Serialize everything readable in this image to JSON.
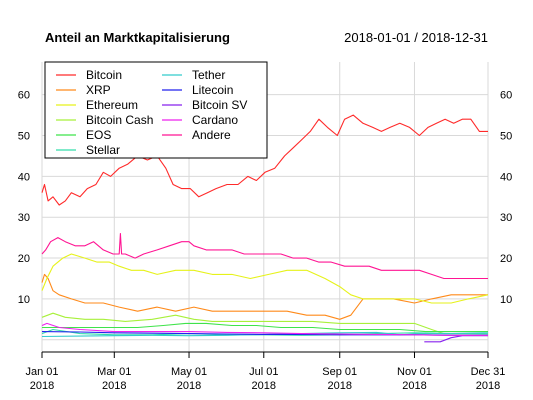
{
  "chart_data": {
    "type": "line",
    "title": "Anteil an Marktkapitalisierung",
    "subtitle": "2018-01-01 / 2018-12-31",
    "xlabel": "",
    "ylabel": "",
    "x_ticks": [
      "2018-01-01",
      "2018-03-01",
      "2018-05-01",
      "2018-07-01",
      "2018-09-01",
      "2018-11-01",
      "2018-12-31"
    ],
    "x_tick_labels": [
      {
        "month": "Jan 01",
        "year": "2018"
      },
      {
        "month": "Mar 01",
        "year": "2018"
      },
      {
        "month": "May 01",
        "year": "2018"
      },
      {
        "month": "Jul 01",
        "year": "2018"
      },
      {
        "month": "Sep 01",
        "year": "2018"
      },
      {
        "month": "Nov 01",
        "year": "2018"
      },
      {
        "month": "Dec 31",
        "year": "2018"
      }
    ],
    "y_ticks": [
      10,
      20,
      30,
      40,
      50,
      60
    ],
    "y_grid": [
      0,
      10,
      20,
      30,
      40,
      50,
      60
    ],
    "xlim": [
      "2018-01-01",
      "2018-12-31"
    ],
    "ylim": [
      -3,
      68
    ],
    "grid": true,
    "legend_position": "top-left",
    "series": [
      {
        "name": "Bitcoin",
        "color": "#ff2a2a",
        "x": [
          "2018-01-01",
          "2018-01-03",
          "2018-01-06",
          "2018-01-10",
          "2018-01-15",
          "2018-01-20",
          "2018-01-25",
          "2018-02-01",
          "2018-02-07",
          "2018-02-14",
          "2018-02-20",
          "2018-02-26",
          "2018-03-05",
          "2018-03-12",
          "2018-03-20",
          "2018-03-28",
          "2018-04-05",
          "2018-04-12",
          "2018-04-18",
          "2018-04-25",
          "2018-05-02",
          "2018-05-09",
          "2018-05-16",
          "2018-05-23",
          "2018-06-01",
          "2018-06-10",
          "2018-06-18",
          "2018-06-25",
          "2018-07-02",
          "2018-07-10",
          "2018-07-18",
          "2018-07-25",
          "2018-08-01",
          "2018-08-08",
          "2018-08-15",
          "2018-08-22",
          "2018-08-30",
          "2018-09-05",
          "2018-09-12",
          "2018-09-20",
          "2018-09-28",
          "2018-10-05",
          "2018-10-12",
          "2018-10-20",
          "2018-10-28",
          "2018-11-05",
          "2018-11-12",
          "2018-11-19",
          "2018-11-26",
          "2018-12-03",
          "2018-12-10",
          "2018-12-17",
          "2018-12-24",
          "2018-12-31"
        ],
        "values": [
          36,
          38,
          34,
          35,
          33,
          34,
          36,
          35,
          37,
          38,
          41,
          40,
          42,
          43,
          45,
          44,
          45,
          42,
          38,
          37,
          37,
          35,
          36,
          37,
          38,
          38,
          40,
          39,
          41,
          42,
          45,
          47,
          49,
          51,
          54,
          52,
          50,
          54,
          55,
          53,
          52,
          51,
          52,
          53,
          52,
          50,
          52,
          53,
          54,
          53,
          54,
          54,
          51,
          51
        ]
      },
      {
        "name": "XRP",
        "color": "#ff8a1a",
        "x": [
          "2018-01-01",
          "2018-01-03",
          "2018-01-06",
          "2018-01-10",
          "2018-01-15",
          "2018-01-25",
          "2018-02-05",
          "2018-02-20",
          "2018-03-05",
          "2018-03-20",
          "2018-04-05",
          "2018-04-20",
          "2018-05-05",
          "2018-05-20",
          "2018-06-05",
          "2018-06-20",
          "2018-07-05",
          "2018-07-20",
          "2018-08-05",
          "2018-08-20",
          "2018-09-01",
          "2018-09-10",
          "2018-09-20",
          "2018-10-01",
          "2018-10-15",
          "2018-11-01",
          "2018-11-15",
          "2018-12-01",
          "2018-12-15",
          "2018-12-31"
        ],
        "values": [
          14,
          16,
          15,
          12,
          11,
          10,
          9,
          9,
          8,
          7,
          8,
          7,
          8,
          7,
          7,
          7,
          7,
          7,
          6,
          6,
          5,
          6,
          10,
          10,
          10,
          9,
          10,
          11,
          11,
          11
        ]
      },
      {
        "name": "Ethereum",
        "color": "#e6f21a",
        "x": [
          "2018-01-01",
          "2018-01-05",
          "2018-01-10",
          "2018-01-18",
          "2018-01-25",
          "2018-02-05",
          "2018-02-15",
          "2018-02-25",
          "2018-03-05",
          "2018-03-15",
          "2018-03-25",
          "2018-04-05",
          "2018-04-20",
          "2018-05-05",
          "2018-05-20",
          "2018-06-05",
          "2018-06-20",
          "2018-07-05",
          "2018-07-20",
          "2018-08-05",
          "2018-08-20",
          "2018-09-01",
          "2018-09-10",
          "2018-09-20",
          "2018-10-01",
          "2018-10-15",
          "2018-11-01",
          "2018-11-15",
          "2018-12-01",
          "2018-12-15",
          "2018-12-31"
        ],
        "values": [
          12,
          15,
          18,
          20,
          21,
          20,
          19,
          19,
          18,
          17,
          17,
          16,
          17,
          17,
          16,
          16,
          15,
          16,
          17,
          17,
          15,
          13,
          11,
          10,
          10,
          10,
          10,
          9,
          9,
          10,
          11
        ]
      },
      {
        "name": "Bitcoin Cash",
        "color": "#a8f03a",
        "x": [
          "2018-01-01",
          "2018-01-10",
          "2018-01-20",
          "2018-02-05",
          "2018-02-20",
          "2018-03-10",
          "2018-04-01",
          "2018-04-20",
          "2018-05-05",
          "2018-05-20",
          "2018-06-10",
          "2018-07-01",
          "2018-07-20",
          "2018-08-10",
          "2018-09-01",
          "2018-09-20",
          "2018-10-10",
          "2018-11-01",
          "2018-11-15",
          "2018-11-25",
          "2018-12-05",
          "2018-12-31"
        ],
        "values": [
          5.5,
          6.5,
          5.5,
          5,
          5,
          4.5,
          5,
          6,
          5,
          4.5,
          4.5,
          4.5,
          4.5,
          4.5,
          4,
          4,
          4,
          4,
          2.5,
          1.5,
          1.5,
          1.5
        ]
      },
      {
        "name": "EOS",
        "color": "#3fe34a",
        "x": [
          "2018-01-01",
          "2018-01-20",
          "2018-02-10",
          "2018-03-01",
          "2018-03-20",
          "2018-04-10",
          "2018-04-28",
          "2018-05-15",
          "2018-06-05",
          "2018-06-25",
          "2018-07-15",
          "2018-08-10",
          "2018-09-01",
          "2018-09-25",
          "2018-10-20",
          "2018-11-10",
          "2018-12-01",
          "2018-12-31"
        ],
        "values": [
          3,
          3,
          3,
          3,
          3,
          3.5,
          4,
          4,
          3.5,
          3.5,
          3,
          3,
          2.5,
          2.5,
          2.5,
          2,
          2,
          2
        ]
      },
      {
        "name": "Stellar",
        "color": "#33ddaa",
        "x": [
          "2018-01-01",
          "2018-01-10",
          "2018-02-01",
          "2018-03-01",
          "2018-04-01",
          "2018-05-01",
          "2018-06-01",
          "2018-07-01",
          "2018-08-01",
          "2018-09-01",
          "2018-10-01",
          "2018-11-01",
          "2018-12-01",
          "2018-12-31"
        ],
        "values": [
          1.5,
          2.5,
          1.5,
          1.2,
          1.2,
          1.5,
          1.2,
          1.2,
          1.1,
          1.2,
          1.5,
          1.7,
          1.5,
          1.4
        ]
      },
      {
        "name": "Tether",
        "color": "#33cccc",
        "x": [
          "2018-01-01",
          "2018-02-01",
          "2018-03-01",
          "2018-04-01",
          "2018-05-01",
          "2018-06-01",
          "2018-07-01",
          "2018-08-01",
          "2018-09-01",
          "2018-10-01",
          "2018-10-20",
          "2018-11-01",
          "2018-12-01",
          "2018-12-31"
        ],
        "values": [
          0.8,
          0.9,
          1,
          1.1,
          1,
          1.1,
          1.3,
          1.5,
          1.7,
          1.8,
          1.2,
          1.4,
          1.5,
          1.7
        ]
      },
      {
        "name": "Litecoin",
        "color": "#2222ee",
        "x": [
          "2018-01-01",
          "2018-02-01",
          "2018-03-01",
          "2018-04-01",
          "2018-05-01",
          "2018-06-01",
          "2018-07-01",
          "2018-08-01",
          "2018-09-01",
          "2018-10-01",
          "2018-11-01",
          "2018-12-01",
          "2018-12-31"
        ],
        "values": [
          2,
          1.9,
          1.7,
          1.6,
          1.5,
          1.4,
          1.3,
          1.3,
          1.2,
          1.2,
          1.2,
          1.1,
          1.1
        ]
      },
      {
        "name": "Bitcoin SV",
        "color": "#8822ee",
        "x": [
          "2018-11-09",
          "2018-11-15",
          "2018-11-22",
          "2018-12-01",
          "2018-12-10",
          "2018-12-20",
          "2018-12-31"
        ],
        "values": [
          -0.5,
          -0.5,
          -0.5,
          0.5,
          1,
          1,
          1
        ]
      },
      {
        "name": "Cardano",
        "color": "#ee22ee",
        "x": [
          "2018-01-01",
          "2018-01-05",
          "2018-01-15",
          "2018-02-01",
          "2018-03-01",
          "2018-04-01",
          "2018-05-01",
          "2018-06-01",
          "2018-07-01",
          "2018-08-01",
          "2018-09-01",
          "2018-10-01",
          "2018-11-01",
          "2018-12-01",
          "2018-12-31"
        ],
        "values": [
          3.5,
          4,
          3,
          2.5,
          2,
          2,
          2,
          1.8,
          1.7,
          1.5,
          1.4,
          1.3,
          1.2,
          1.1,
          1.1
        ]
      },
      {
        "name": "Andere",
        "color": "#ff1493",
        "x": [
          "2018-01-01",
          "2018-01-04",
          "2018-01-08",
          "2018-01-14",
          "2018-01-20",
          "2018-01-28",
          "2018-02-05",
          "2018-02-12",
          "2018-02-20",
          "2018-02-28",
          "2018-03-05",
          "2018-03-06",
          "2018-03-07",
          "2018-03-10",
          "2018-03-18",
          "2018-03-25",
          "2018-04-05",
          "2018-04-15",
          "2018-04-25",
          "2018-05-01",
          "2018-05-05",
          "2018-05-15",
          "2018-05-25",
          "2018-06-05",
          "2018-06-15",
          "2018-06-25",
          "2018-07-05",
          "2018-07-15",
          "2018-07-25",
          "2018-08-05",
          "2018-08-15",
          "2018-08-25",
          "2018-09-05",
          "2018-09-15",
          "2018-09-25",
          "2018-10-05",
          "2018-10-15",
          "2018-10-25",
          "2018-11-05",
          "2018-11-15",
          "2018-11-25",
          "2018-12-05",
          "2018-12-15",
          "2018-12-31"
        ],
        "values": [
          21,
          22,
          24,
          25,
          24,
          23,
          23,
          24,
          22,
          21,
          21,
          26,
          21,
          21,
          20,
          21,
          22,
          23,
          24,
          24,
          23,
          22,
          22,
          22,
          21,
          21,
          21,
          21,
          20,
          20,
          19,
          19,
          18,
          18,
          18,
          17,
          17,
          17,
          17,
          16,
          15,
          15,
          15,
          15
        ]
      }
    ]
  }
}
